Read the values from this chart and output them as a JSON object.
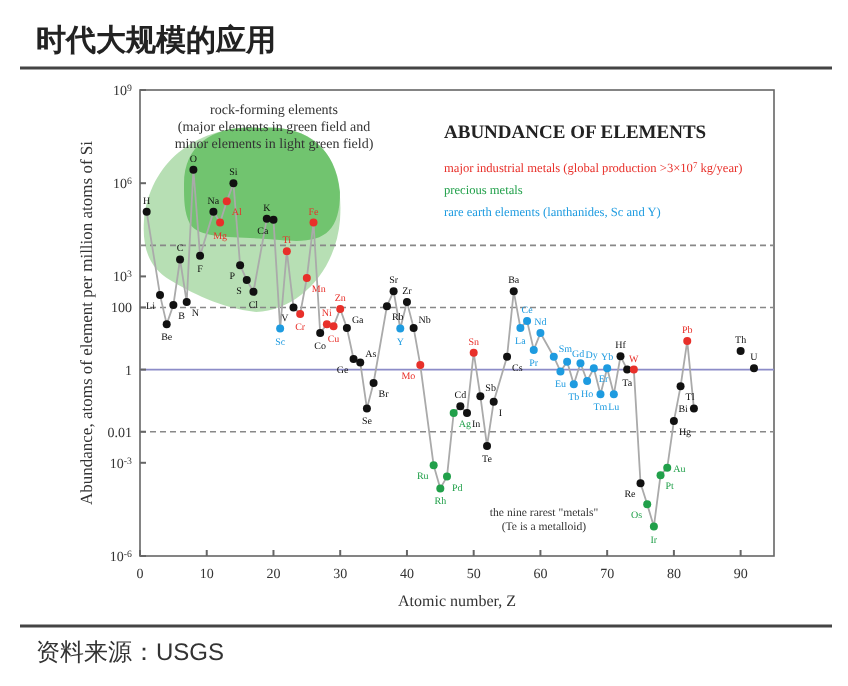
{
  "chart_data": {
    "type": "scatter",
    "title": "时代大规模的应用",
    "subtitle": "ABUNDANCE OF  ELEMENTS",
    "xlabel": "Atomic number, Z",
    "ylabel": "Abundance, atoms of element per million atoms of Si",
    "xlim": [
      0,
      95
    ],
    "xticks": [
      0,
      10,
      20,
      30,
      40,
      50,
      60,
      70,
      80,
      90
    ],
    "ylim": [
      1e-06,
      1000000000.0
    ],
    "yticks": [
      {
        "value": 1e-06,
        "label": "10$^{-6}$"
      },
      {
        "value": 0.001,
        "label": "10$^{-3}$"
      },
      0.01,
      1,
      100,
      {
        "value": 1000,
        "label": "10$^{3}$"
      },
      {
        "value": 1000000,
        "label": "10$^{6}$"
      },
      {
        "value": 1000000000,
        "label": "10$^{9}$"
      }
    ],
    "log": "y",
    "grid": false,
    "legend": "top right",
    "marker": "circle",
    "ref_lines": [
      {
        "axis": "y",
        "value": 10000,
        "color": "#888888",
        "line_style": "dashed"
      },
      {
        "axis": "y",
        "value": 100,
        "color": "#888888",
        "line_style": "dashed"
      },
      {
        "axis": "y",
        "value": 1,
        "color": "#8c8cc8",
        "line_style": "solid"
      },
      {
        "axis": "y",
        "value": 0.01,
        "color": "#888888",
        "line_style": "dashed"
      }
    ],
    "series": [
      {
        "type": "line",
        "marker": "none",
        "color": "#aaaaaa",
        "x": [
          1,
          3,
          4,
          5,
          6,
          7,
          8,
          9,
          11,
          12,
          13,
          14,
          15,
          16,
          17,
          19,
          20,
          21,
          22,
          23,
          24,
          25,
          26,
          27,
          28,
          29,
          30,
          31,
          32,
          33,
          34,
          35,
          37,
          38,
          39,
          40,
          41,
          42,
          44,
          45,
          46,
          47,
          48,
          49,
          50,
          51,
          52,
          53,
          55,
          56,
          57,
          58,
          59,
          60,
          62,
          63,
          64,
          65,
          66,
          67,
          68,
          69,
          70,
          71,
          72,
          73,
          74,
          75,
          76,
          77,
          78,
          79,
          80,
          81,
          82,
          83
        ],
        "values": [
          120000,
          250,
          29,
          120,
          3500,
          150,
          2700000,
          4600,
          120000,
          54000,
          260000,
          1000000,
          2300,
          760,
          320,
          72000,
          66000,
          21,
          6500,
          100,
          62,
          890,
          54000,
          15,
          29,
          25,
          89,
          22,
          2.2,
          1.7,
          0.056,
          0.37,
          110,
          330,
          21,
          150,
          22,
          1.4,
          0.00083,
          0.00015,
          0.00036,
          0.04,
          0.066,
          0.04,
          3.5,
          0.14,
          0.0035,
          0.093,
          2.6,
          330,
          22,
          37,
          4.3,
          15,
          2.6,
          0.87,
          1.8,
          0.34,
          1.6,
          0.43,
          1.1,
          0.16,
          1.1,
          0.16,
          2.7,
          1.0,
          1.0,
          0.00022,
          4.6e-05,
          8.9e-06,
          0.0004,
          0.00069,
          0.022,
          0.29,
          8.3,
          0.056
        ]
      },
      {
        "color": "#111111",
        "x": [
          1,
          3,
          4,
          5,
          6,
          7,
          8,
          9,
          11,
          14,
          15,
          16,
          17,
          19,
          20,
          23,
          27,
          31,
          32,
          33,
          34,
          35,
          37,
          38,
          40,
          41,
          48,
          49,
          51,
          52,
          53,
          55,
          56,
          72,
          73,
          75,
          80,
          81,
          83,
          90,
          92
        ],
        "values": [
          120000,
          250,
          29,
          120,
          3500,
          150,
          2700000,
          4600,
          120000,
          1000000,
          2300,
          760,
          320,
          72000,
          66000,
          100,
          15,
          22,
          2.2,
          1.7,
          0.056,
          0.37,
          110,
          330,
          150,
          22,
          0.066,
          0.04,
          0.14,
          0.0035,
          0.093,
          2.6,
          330,
          2.7,
          1.0,
          0.00022,
          0.022,
          0.29,
          0.056,
          4,
          1.1
        ]
      },
      {
        "name": "major industrial metals (global production >3×10$^{7}$ kg/year)",
        "color": "#e8302a",
        "x": [
          12,
          13,
          22,
          24,
          25,
          26,
          28,
          29,
          30,
          42,
          50,
          74,
          82
        ],
        "values": [
          54000,
          260000,
          6500,
          62,
          890,
          54000,
          29,
          25,
          89,
          1.4,
          3.5,
          1.0,
          8.3
        ]
      },
      {
        "name": "precious metals",
        "color": "#21a04a",
        "x": [
          44,
          45,
          46,
          47,
          76,
          77,
          78,
          79
        ],
        "values": [
          0.00083,
          0.00015,
          0.00036,
          0.04,
          4.6e-05,
          8.9e-06,
          0.0004,
          0.00069
        ]
      },
      {
        "name": "rare earth elements (lanthanides, Sc and Y)",
        "color": "#1e9be0",
        "x": [
          21,
          39,
          57,
          58,
          59,
          60,
          62,
          63,
          64,
          65,
          66,
          67,
          68,
          69,
          70,
          71
        ],
        "values": [
          21,
          21,
          22,
          37,
          4.3,
          15,
          2.6,
          0.87,
          1.8,
          0.34,
          1.6,
          0.43,
          1.1,
          0.16,
          1.1,
          0.16
        ]
      }
    ],
    "annotations": [
      "rock-forming elements\n(major elements in green field and\nminor elements in light green field)",
      "the nine rarest \"metals\"\n(Te is a metalloid)",
      "资料来源：USGS",
      {
        "text": "H",
        "x": 1,
        "y": 120000
      },
      {
        "text": "Li",
        "x": 3,
        "y": 250
      },
      {
        "text": "Be",
        "x": 4,
        "y": 29
      },
      {
        "text": "B",
        "x": 5,
        "y": 120
      },
      {
        "text": "C",
        "x": 6,
        "y": 3500
      },
      {
        "text": "N",
        "x": 7,
        "y": 150
      },
      {
        "text": "O",
        "x": 8,
        "y": 2700000
      },
      {
        "text": "F",
        "x": 9,
        "y": 4600
      },
      {
        "text": "Na",
        "x": 11,
        "y": 120000
      },
      {
        "text": "Mg",
        "x": 12,
        "y": 54000
      },
      {
        "text": "Al",
        "x": 13,
        "y": 260000
      },
      {
        "text": "Si",
        "x": 14,
        "y": 1000000
      },
      {
        "text": "P",
        "x": 15,
        "y": 2300
      },
      {
        "text": "S",
        "x": 16,
        "y": 760
      },
      {
        "text": "Cl",
        "x": 17,
        "y": 320
      },
      {
        "text": "K",
        "x": 19,
        "y": 72000
      },
      {
        "text": "Ca",
        "x": 20,
        "y": 66000
      },
      {
        "text": "Sc",
        "x": 21,
        "y": 21
      },
      {
        "text": "Ti",
        "x": 22,
        "y": 6500
      },
      {
        "text": "V",
        "x": 23,
        "y": 100
      },
      {
        "text": "Cr",
        "x": 24,
        "y": 62
      },
      {
        "text": "Mn",
        "x": 25,
        "y": 890
      },
      {
        "text": "Fe",
        "x": 26,
        "y": 54000
      },
      {
        "text": "Co",
        "x": 27,
        "y": 15
      },
      {
        "text": "Ni",
        "x": 28,
        "y": 29
      },
      {
        "text": "Cu",
        "x": 29,
        "y": 25
      },
      {
        "text": "Zn",
        "x": 30,
        "y": 89
      },
      {
        "text": "Ga",
        "x": 31,
        "y": 22
      },
      {
        "text": "Ge",
        "x": 32,
        "y": 2.2
      },
      {
        "text": "As",
        "x": 33,
        "y": 1.7
      },
      {
        "text": "Se",
        "x": 34,
        "y": 0.056
      },
      {
        "text": "Br",
        "x": 35,
        "y": 0.37
      },
      {
        "text": "Rb",
        "x": 37,
        "y": 110
      },
      {
        "text": "Sr",
        "x": 38,
        "y": 330
      },
      {
        "text": "Y",
        "x": 39,
        "y": 21
      },
      {
        "text": "Zr",
        "x": 40,
        "y": 150
      },
      {
        "text": "Nb",
        "x": 41,
        "y": 22
      },
      {
        "text": "Mo",
        "x": 42,
        "y": 1.4
      },
      {
        "text": "Ru",
        "x": 44,
        "y": 0.00083
      },
      {
        "text": "Rh",
        "x": 45,
        "y": 0.00015
      },
      {
        "text": "Pd",
        "x": 46,
        "y": 0.00036
      },
      {
        "text": "Ag",
        "x": 47,
        "y": 0.04
      },
      {
        "text": "Cd",
        "x": 48,
        "y": 0.066
      },
      {
        "text": "In",
        "x": 49,
        "y": 0.04
      },
      {
        "text": "Sn",
        "x": 50,
        "y": 3.5
      },
      {
        "text": "Sb",
        "x": 51,
        "y": 0.14
      },
      {
        "text": "Te",
        "x": 52,
        "y": 0.0035
      },
      {
        "text": "I",
        "x": 53,
        "y": 0.093
      },
      {
        "text": "Cs",
        "x": 55,
        "y": 2.6
      },
      {
        "text": "Ba",
        "x": 56,
        "y": 330
      },
      {
        "text": "La",
        "x": 57,
        "y": 22
      },
      {
        "text": "Ce",
        "x": 58,
        "y": 37
      },
      {
        "text": "Pr",
        "x": 59,
        "y": 4.3
      },
      {
        "text": "Nd",
        "x": 60,
        "y": 15
      },
      {
        "text": "Sm",
        "x": 62,
        "y": 2.6
      },
      {
        "text": "Eu",
        "x": 63,
        "y": 0.87
      },
      {
        "text": "Gd",
        "x": 64,
        "y": 1.8
      },
      {
        "text": "Tb",
        "x": 65,
        "y": 0.34
      },
      {
        "text": "Dy",
        "x": 66,
        "y": 1.6
      },
      {
        "text": "Ho",
        "x": 67,
        "y": 0.43
      },
      {
        "text": "Er",
        "x": 68,
        "y": 1.1
      },
      {
        "text": "Tm",
        "x": 69,
        "y": 0.16
      },
      {
        "text": "Yb",
        "x": 70,
        "y": 1.1
      },
      {
        "text": "Lu",
        "x": 71,
        "y": 0.16
      },
      {
        "text": "Hf",
        "x": 72,
        "y": 2.7
      },
      {
        "text": "Ta",
        "x": 73,
        "y": 1.0
      },
      {
        "text": "W",
        "x": 74,
        "y": 1.0
      },
      {
        "text": "Re",
        "x": 75,
        "y": 0.00022
      },
      {
        "text": "Os",
        "x": 76,
        "y": 4.6e-05
      },
      {
        "text": "Ir",
        "x": 77,
        "y": 8.9e-06
      },
      {
        "text": "Pt",
        "x": 78,
        "y": 0.0004
      },
      {
        "text": "Au",
        "x": 79,
        "y": 0.00069
      },
      {
        "text": "Hg",
        "x": 80,
        "y": 0.022
      },
      {
        "text": "Tl",
        "x": 81,
        "y": 0.29
      },
      {
        "text": "Pb",
        "x": 82,
        "y": 8.3
      },
      {
        "text": "Bi",
        "x": 83,
        "y": 0.056
      },
      {
        "text": "Th",
        "x": 90,
        "y": 4
      },
      {
        "text": "U",
        "x": 92,
        "y": 1.1
      }
    ]
  }
}
